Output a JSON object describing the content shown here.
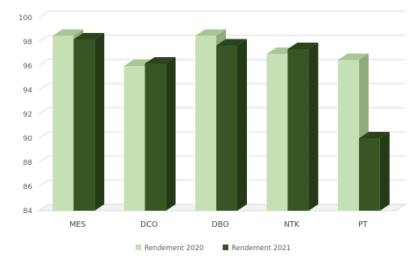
{
  "chart_data": {
    "type": "bar",
    "categories": [
      "MES",
      "DCO",
      "DBO",
      "NTK",
      "PT"
    ],
    "series": [
      {
        "name": "Rendement 2020",
        "values": [
          98.5,
          96.0,
          98.5,
          97.0,
          96.5
        ],
        "color": "#c5e0b4",
        "side": "#8faa7c",
        "top": "#a9c796"
      },
      {
        "name": "Rendement 2021",
        "values": [
          98.2,
          96.2,
          97.7,
          97.4,
          90.0
        ],
        "color": "#375623",
        "side": "#243a16",
        "top": "#2b441b"
      }
    ],
    "yticks": [
      84,
      86,
      88,
      90,
      92,
      94,
      96,
      98,
      100
    ],
    "ylim": [
      84,
      100
    ],
    "grid": true,
    "legend_position": "bottom"
  }
}
